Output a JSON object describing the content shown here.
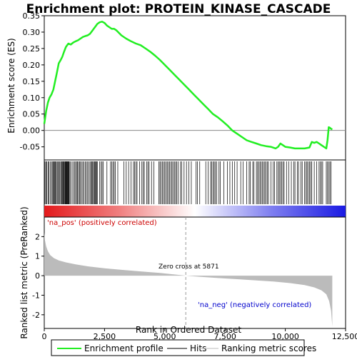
{
  "chart_data": [
    {
      "type": "line",
      "title": "Enrichment plot: PROTEIN_KINASE_CASCADE",
      "ylabel": "Enrichment score (ES)",
      "ylim": [
        -0.09,
        0.35
      ],
      "yticks": [
        -0.05,
        0.0,
        0.05,
        0.1,
        0.15,
        0.2,
        0.25,
        0.3,
        0.35
      ],
      "ytick_labels": [
        "-0.05",
        "0.00",
        "0.05",
        "0.10",
        "0.15",
        "0.20",
        "0.25",
        "0.30",
        "0.35"
      ],
      "xlim": [
        0,
        12500
      ],
      "grid": false,
      "line_color": "#22ee22",
      "series": [
        {
          "name": "Enrichment profile",
          "x": [
            0,
            80,
            150,
            220,
            300,
            380,
            450,
            520,
            600,
            680,
            750,
            820,
            900,
            950,
            1000,
            1100,
            1200,
            1300,
            1400,
            1500,
            1600,
            1700,
            1800,
            1900,
            2000,
            2100,
            2200,
            2300,
            2400,
            2500,
            2600,
            2700,
            2800,
            2900,
            3000,
            3200,
            3400,
            3600,
            3800,
            4000,
            4200,
            4400,
            4600,
            4800,
            5000,
            5200,
            5400,
            5600,
            5800,
            6000,
            6200,
            6400,
            6600,
            6800,
            7000,
            7200,
            7400,
            7600,
            7800,
            8000,
            8200,
            8400,
            8600,
            8800,
            9000,
            9200,
            9400,
            9600,
            9700,
            9800,
            9900,
            10000,
            10200,
            10400,
            10600,
            10800,
            11000,
            11100,
            11200,
            11300,
            11400,
            11500,
            11600,
            11700,
            11750,
            11800,
            11850,
            11900,
            11950
          ],
          "y": [
            0.02,
            0.06,
            0.085,
            0.1,
            0.11,
            0.125,
            0.15,
            0.175,
            0.205,
            0.215,
            0.225,
            0.24,
            0.255,
            0.26,
            0.265,
            0.262,
            0.268,
            0.272,
            0.275,
            0.28,
            0.285,
            0.288,
            0.29,
            0.295,
            0.305,
            0.315,
            0.325,
            0.33,
            0.332,
            0.328,
            0.32,
            0.315,
            0.31,
            0.31,
            0.305,
            0.29,
            0.28,
            0.272,
            0.265,
            0.26,
            0.25,
            0.24,
            0.228,
            0.215,
            0.2,
            0.185,
            0.17,
            0.155,
            0.14,
            0.125,
            0.11,
            0.095,
            0.08,
            0.065,
            0.05,
            0.04,
            0.028,
            0.015,
            0.0,
            -0.01,
            -0.02,
            -0.03,
            -0.035,
            -0.04,
            -0.045,
            -0.048,
            -0.05,
            -0.055,
            -0.05,
            -0.04,
            -0.045,
            -0.05,
            -0.052,
            -0.055,
            -0.055,
            -0.055,
            -0.052,
            -0.035,
            -0.038,
            -0.035,
            -0.04,
            -0.045,
            -0.05,
            -0.055,
            -0.03,
            0.01,
            0.008,
            0.005,
            0.003
          ]
        }
      ]
    },
    {
      "type": "barcode",
      "name": "Hits",
      "xlim": [
        0,
        12500
      ],
      "hit_positions": [
        30,
        70,
        110,
        160,
        200,
        260,
        300,
        350,
        380,
        410,
        440,
        470,
        500,
        540,
        580,
        620,
        650,
        690,
        720,
        750,
        780,
        800,
        830,
        860,
        880,
        900,
        920,
        940,
        960,
        980,
        1000,
        1020,
        1040,
        1080,
        1150,
        1200,
        1260,
        1300,
        1340,
        1380,
        1420,
        1460,
        1500,
        1550,
        1600,
        1650,
        1700,
        1750,
        1800,
        1850,
        1900,
        1950,
        1980,
        2010,
        2050,
        2080,
        2110,
        2140,
        2170,
        2200,
        2300,
        2350,
        2400,
        2450,
        2600,
        2750,
        2800,
        2850,
        2900,
        2950,
        3050,
        3300,
        3400,
        3500,
        3600,
        3700,
        3750,
        3800,
        3850,
        3950,
        4050,
        4100,
        4150,
        4250,
        4300,
        4350,
        4450,
        4550,
        4750,
        4800,
        4850,
        4900,
        4950,
        5000,
        5050,
        5100,
        5150,
        5200,
        5250,
        5300,
        5350,
        5400,
        5450,
        5500,
        5550,
        5650,
        5700,
        5800,
        5900,
        6000,
        6100,
        6300,
        6350,
        6450,
        6700,
        6800,
        6900,
        6950,
        7000,
        7050,
        7100,
        7150,
        7250,
        7300,
        7450,
        7600,
        7700,
        7800,
        7900,
        8000,
        8150,
        8250,
        8400,
        8500,
        8550,
        8650,
        8700,
        8800,
        8850,
        8900,
        8950,
        9000,
        9050,
        9100,
        9150,
        9200,
        9250,
        9300,
        9400,
        9500,
        9550,
        9650,
        9700,
        9750,
        9800,
        9850,
        9900,
        9950,
        10050,
        10150,
        10250,
        10350,
        10400,
        10500,
        10550,
        10650,
        10700,
        10800,
        10850,
        10900,
        10950,
        11000,
        11050,
        11100,
        11200,
        11300,
        11400,
        11450,
        11500,
        11550,
        11700,
        11750,
        11800,
        11850,
        11900
      ]
    },
    {
      "type": "heatmap",
      "name": "rank-colorbar",
      "xlim": [
        0,
        12500
      ],
      "colors": [
        "#e31a1c",
        "#f08080",
        "#ffffff",
        "#8080f0",
        "#1a1ae3"
      ]
    },
    {
      "type": "area",
      "ylabel": "Ranked list metric (PreRanked)",
      "xlabel": "Rank in Ordered Dataset",
      "ylim": [
        -2.7,
        3.0
      ],
      "yticks": [
        -2,
        -1,
        0,
        1,
        2
      ],
      "ytick_labels": [
        "-2",
        "-1",
        "0",
        "1",
        "2"
      ],
      "xlim": [
        0,
        12500
      ],
      "xticks": [
        0,
        2500,
        5000,
        7500,
        10000,
        12500
      ],
      "xtick_labels": [
        "0",
        "2,500",
        "5,000",
        "7,500",
        "10,000",
        "12,500"
      ],
      "fill_color": "#bbbbbb",
      "series": [
        {
          "name": "Ranking metric scores",
          "x": [
            0,
            30,
            80,
            150,
            250,
            400,
            600,
            900,
            1300,
            1800,
            2500,
            3200,
            4000,
            4800,
            5500,
            5871,
            6500,
            7200,
            8000,
            8800,
            9500,
            10200,
            10800,
            11200,
            11500,
            11700,
            11820,
            11900,
            11950
          ],
          "y": [
            2.2,
            1.8,
            1.5,
            1.25,
            1.05,
            0.9,
            0.78,
            0.68,
            0.58,
            0.48,
            0.38,
            0.3,
            0.22,
            0.14,
            0.05,
            0.0,
            -0.06,
            -0.12,
            -0.18,
            -0.24,
            -0.3,
            -0.38,
            -0.48,
            -0.6,
            -0.75,
            -0.95,
            -1.3,
            -1.8,
            -2.6
          ]
        }
      ],
      "zero_cross": 5871,
      "annotations": [
        "'na_pos' (positively correlated)",
        "Zero cross at 5871",
        "'na_neg' (negatively correlated)"
      ]
    }
  ],
  "legend": {
    "items": [
      {
        "label": "Enrichment profile",
        "color": "#22ee22"
      },
      {
        "label": "Hits",
        "color": "#000000"
      },
      {
        "label": "Ranking metric scores",
        "color": "#bbbbbb"
      }
    ],
    "placement": "bottom"
  }
}
